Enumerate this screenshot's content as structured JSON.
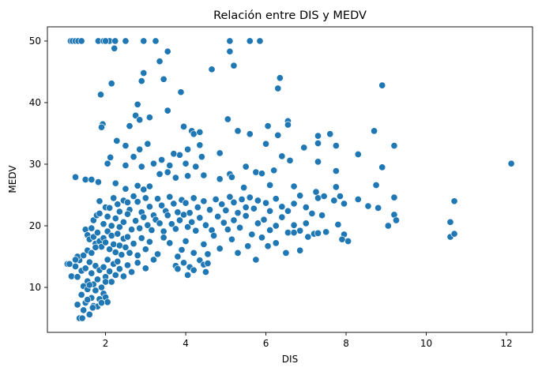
{
  "chart_data": {
    "type": "scatter",
    "title": "Relación entre DIS y MEDV",
    "xlabel": "DIS",
    "ylabel": "MEDV",
    "xlim": [
      0.55,
      12.65
    ],
    "ylim": [
      2.7,
      52.3
    ],
    "xticks": [
      2,
      4,
      6,
      8,
      10,
      12
    ],
    "yticks": [
      10,
      20,
      30,
      40,
      50
    ],
    "grid": false,
    "marker_color": "#1f77b4",
    "points": [
      [
        1.13,
        50
      ],
      [
        1.18,
        50
      ],
      [
        1.25,
        50
      ],
      [
        1.32,
        50
      ],
      [
        1.4,
        50
      ],
      [
        1.82,
        50
      ],
      [
        1.95,
        50
      ],
      [
        2.04,
        50
      ],
      [
        2.1,
        50
      ],
      [
        2.24,
        50
      ],
      [
        2.5,
        50
      ],
      [
        2.95,
        50
      ],
      [
        3.25,
        50
      ],
      [
        5.1,
        50
      ],
      [
        5.6,
        50
      ],
      [
        5.85,
        50
      ],
      [
        2.22,
        48.8
      ],
      [
        3.55,
        48.3
      ],
      [
        5.1,
        48.3
      ],
      [
        2.0,
        50
      ],
      [
        4.65,
        45.4
      ],
      [
        5.2,
        46
      ],
      [
        8.9,
        42.8
      ],
      [
        6.35,
        44
      ],
      [
        6.3,
        42.3
      ],
      [
        2.95,
        44.8
      ],
      [
        2.9,
        43.5
      ],
      [
        3.45,
        43.8
      ],
      [
        2.15,
        43.1
      ],
      [
        1.88,
        41.3
      ],
      [
        3.88,
        41.7
      ],
      [
        3.35,
        46.7
      ],
      [
        2.8,
        39.7
      ],
      [
        2.75,
        37.9
      ],
      [
        2.85,
        37.2
      ],
      [
        2.6,
        36.2
      ],
      [
        1.93,
        36.5
      ],
      [
        1.9,
        36
      ],
      [
        3.1,
        37.6
      ],
      [
        3.55,
        38.7
      ],
      [
        4.15,
        35.4
      ],
      [
        3.95,
        36.1
      ],
      [
        4.2,
        34.9
      ],
      [
        4.35,
        35.2
      ],
      [
        5.05,
        37.3
      ],
      [
        5.3,
        35.4
      ],
      [
        5.6,
        34.9
      ],
      [
        6.55,
        37
      ],
      [
        6.55,
        36.4
      ],
      [
        6.05,
        36.2
      ],
      [
        6.3,
        34.7
      ],
      [
        7.6,
        34.9
      ],
      [
        7.3,
        34.6
      ],
      [
        7.75,
        33.0
      ],
      [
        7.3,
        33.4
      ],
      [
        8.7,
        35.4
      ],
      [
        9.2,
        33.0
      ],
      [
        6.95,
        32.7
      ],
      [
        6.0,
        33.3
      ],
      [
        4.35,
        33.1
      ],
      [
        4.05,
        32.4
      ],
      [
        3.85,
        31.5
      ],
      [
        3.7,
        31.7
      ],
      [
        3.05,
        33.3
      ],
      [
        2.85,
        32.4
      ],
      [
        2.7,
        31.2
      ],
      [
        2.5,
        33.0
      ],
      [
        2.28,
        33.8
      ],
      [
        2.12,
        31.1
      ],
      [
        2.05,
        30.1
      ],
      [
        2.5,
        29.8
      ],
      [
        2.9,
        29.6
      ],
      [
        3.2,
        30.1
      ],
      [
        3.4,
        30.7
      ],
      [
        3.6,
        29.8
      ],
      [
        4.0,
        30.1
      ],
      [
        4.25,
        29.6
      ],
      [
        4.4,
        31.2
      ],
      [
        4.85,
        31.8
      ],
      [
        5.1,
        28.4
      ],
      [
        5.5,
        29.6
      ],
      [
        5.75,
        28.7
      ],
      [
        5.9,
        28.5
      ],
      [
        6.2,
        29.0
      ],
      [
        6.4,
        31.3
      ],
      [
        6.6,
        30.6
      ],
      [
        7.3,
        30.4
      ],
      [
        7.75,
        28.9
      ],
      [
        8.3,
        31.6
      ],
      [
        8.9,
        29.5
      ],
      [
        12.12,
        30.1
      ],
      [
        1.25,
        27.9
      ],
      [
        1.5,
        27.5
      ],
      [
        1.65,
        27.5
      ],
      [
        1.82,
        27.1
      ],
      [
        3.35,
        28.4
      ],
      [
        3.55,
        28.7
      ],
      [
        3.75,
        27.8
      ],
      [
        4.05,
        28.1
      ],
      [
        4.45,
        28.2
      ],
      [
        4.85,
        27.6
      ],
      [
        5.15,
        27.9
      ],
      [
        5.45,
        26.2
      ],
      [
        6.1,
        26.6
      ],
      [
        6.7,
        26.4
      ],
      [
        7.25,
        25.5
      ],
      [
        7.75,
        26.3
      ],
      [
        8.75,
        26.6
      ],
      [
        2.8,
        26.5
      ],
      [
        2.95,
        25.9
      ],
      [
        3.1,
        26.4
      ],
      [
        2.25,
        26.9
      ],
      [
        2.5,
        26.0
      ],
      [
        1.85,
        24.0
      ],
      [
        2.0,
        23.0
      ],
      [
        2.1,
        22.9
      ],
      [
        2.2,
        24.5
      ],
      [
        2.3,
        23.5
      ],
      [
        2.35,
        22.3
      ],
      [
        2.45,
        24.1
      ],
      [
        2.55,
        23.8
      ],
      [
        2.6,
        22.6
      ],
      [
        2.7,
        24.8
      ],
      [
        2.8,
        23.9
      ],
      [
        2.9,
        22.2
      ],
      [
        3.0,
        24.5
      ],
      [
        3.1,
        23.1
      ],
      [
        3.2,
        21.7
      ],
      [
        3.3,
        24.4
      ],
      [
        3.4,
        23.3
      ],
      [
        3.5,
        22.4
      ],
      [
        3.6,
        24.7
      ],
      [
        3.7,
        23.6
      ],
      [
        3.8,
        22.2
      ],
      [
        3.9,
        24.2
      ],
      [
        4.0,
        23.7
      ],
      [
        4.1,
        22.1
      ],
      [
        4.2,
        24.5
      ],
      [
        4.3,
        23.0
      ],
      [
        4.45,
        24.0
      ],
      [
        4.6,
        22.6
      ],
      [
        4.75,
        24.3
      ],
      [
        4.9,
        23.5
      ],
      [
        5.0,
        22.5
      ],
      [
        5.1,
        24.7
      ],
      [
        5.2,
        23.8
      ],
      [
        5.3,
        22.1
      ],
      [
        5.4,
        24.3
      ],
      [
        5.5,
        23.0
      ],
      [
        5.6,
        24.6
      ],
      [
        5.7,
        22.8
      ],
      [
        5.8,
        24.1
      ],
      [
        6.0,
        23.7
      ],
      [
        6.1,
        22.4
      ],
      [
        6.25,
        24.4
      ],
      [
        6.4,
        23.1
      ],
      [
        6.55,
        22.4
      ],
      [
        6.7,
        23.6
      ],
      [
        6.85,
        24.9
      ],
      [
        7.0,
        23.0
      ],
      [
        7.15,
        22.0
      ],
      [
        7.3,
        24.5
      ],
      [
        7.45,
        24.8
      ],
      [
        7.7,
        24.1
      ],
      [
        7.85,
        24.8
      ],
      [
        7.95,
        23.6
      ],
      [
        8.3,
        24.3
      ],
      [
        8.55,
        23.2
      ],
      [
        8.8,
        22.9
      ],
      [
        9.2,
        24.6
      ],
      [
        10.7,
        24.0
      ],
      [
        1.7,
        20.9
      ],
      [
        1.78,
        21.7
      ],
      [
        1.85,
        22.0
      ],
      [
        1.95,
        20.3
      ],
      [
        2.05,
        21.5
      ],
      [
        2.15,
        20.0
      ],
      [
        2.25,
        21.2
      ],
      [
        2.35,
        19.8
      ],
      [
        2.45,
        20.6
      ],
      [
        2.55,
        21.9
      ],
      [
        2.65,
        19.4
      ],
      [
        2.75,
        20.8
      ],
      [
        2.85,
        19.6
      ],
      [
        2.95,
        21.4
      ],
      [
        3.05,
        20.1
      ],
      [
        3.15,
        19.3
      ],
      [
        3.25,
        21.0
      ],
      [
        3.35,
        20.4
      ],
      [
        3.45,
        19.1
      ],
      [
        3.55,
        21.7
      ],
      [
        3.65,
        20.3
      ],
      [
        3.75,
        19.5
      ],
      [
        3.85,
        20.9
      ],
      [
        3.95,
        21.8
      ],
      [
        4.05,
        19.8
      ],
      [
        4.15,
        20.6
      ],
      [
        4.25,
        19.2
      ],
      [
        4.35,
        21.3
      ],
      [
        4.5,
        20.1
      ],
      [
        4.65,
        19.3
      ],
      [
        4.8,
        21.5
      ],
      [
        4.95,
        20.5
      ],
      [
        5.05,
        19.4
      ],
      [
        5.2,
        20.9
      ],
      [
        5.35,
        19.7
      ],
      [
        5.5,
        21.6
      ],
      [
        5.65,
        18.6
      ],
      [
        5.8,
        20.4
      ],
      [
        5.95,
        21.0
      ],
      [
        6.1,
        19.3
      ],
      [
        6.25,
        20.0
      ],
      [
        6.4,
        21.4
      ],
      [
        6.55,
        18.9
      ],
      [
        6.7,
        20.1
      ],
      [
        6.85,
        19.2
      ],
      [
        7.0,
        20.4
      ],
      [
        7.2,
        18.7
      ],
      [
        7.4,
        21.7
      ],
      [
        7.8,
        20.2
      ],
      [
        7.95,
        18.6
      ],
      [
        8.05,
        17.5
      ],
      [
        7.9,
        17.8
      ],
      [
        9.05,
        20.0
      ],
      [
        9.2,
        21.8
      ],
      [
        9.25,
        20.9
      ],
      [
        10.6,
        20.6
      ],
      [
        10.6,
        18.2
      ],
      [
        10.7,
        18.7
      ],
      [
        1.5,
        19.4
      ],
      [
        1.55,
        18.5
      ],
      [
        1.6,
        17.8
      ],
      [
        1.65,
        19.6
      ],
      [
        1.7,
        18.2
      ],
      [
        1.75,
        17.1
      ],
      [
        1.8,
        18.9
      ],
      [
        1.85,
        17.5
      ],
      [
        1.9,
        16.6
      ],
      [
        1.95,
        18.0
      ],
      [
        2.0,
        17.3
      ],
      [
        2.05,
        19.1
      ],
      [
        2.1,
        16.2
      ],
      [
        2.15,
        18.4
      ],
      [
        2.2,
        17.0
      ],
      [
        2.25,
        15.7
      ],
      [
        2.3,
        18.7
      ],
      [
        2.35,
        16.8
      ],
      [
        2.4,
        15.3
      ],
      [
        2.45,
        17.9
      ],
      [
        2.5,
        16.5
      ],
      [
        2.55,
        18.2
      ],
      [
        2.6,
        15.6
      ],
      [
        2.7,
        17.1
      ],
      [
        2.8,
        15.2
      ],
      [
        2.9,
        18.0
      ],
      [
        3.0,
        16.2
      ],
      [
        3.1,
        17.4
      ],
      [
        3.3,
        15.4
      ],
      [
        3.45,
        18.1
      ],
      [
        3.6,
        17.2
      ],
      [
        3.8,
        15.0
      ],
      [
        3.9,
        16.1
      ],
      [
        4.0,
        17.5
      ],
      [
        4.1,
        13.3
      ],
      [
        4.2,
        15.6
      ],
      [
        4.35,
        14.4
      ],
      [
        4.45,
        17.0
      ],
      [
        4.55,
        15.4
      ],
      [
        4.7,
        18.4
      ],
      [
        4.85,
        16.3
      ],
      [
        5.15,
        17.8
      ],
      [
        5.3,
        15.6
      ],
      [
        5.55,
        16.7
      ],
      [
        5.75,
        14.5
      ],
      [
        5.9,
        18.1
      ],
      [
        6.05,
        16.7
      ],
      [
        6.25,
        17.2
      ],
      [
        6.5,
        15.6
      ],
      [
        6.7,
        18.9
      ],
      [
        6.85,
        16.0
      ],
      [
        7.05,
        18.2
      ],
      [
        7.3,
        18.8
      ],
      [
        7.5,
        19.0
      ],
      [
        1.05,
        13.8
      ],
      [
        1.15,
        11.8
      ],
      [
        1.25,
        13.4
      ],
      [
        1.3,
        11.7
      ],
      [
        1.35,
        14.4
      ],
      [
        1.4,
        12.7
      ],
      [
        1.45,
        10.2
      ],
      [
        1.5,
        13.1
      ],
      [
        1.55,
        11.0
      ],
      [
        1.6,
        14.1
      ],
      [
        1.65,
        12.3
      ],
      [
        1.7,
        10.5
      ],
      [
        1.75,
        13.5
      ],
      [
        1.8,
        11.3
      ],
      [
        1.85,
        12.8
      ],
      [
        1.9,
        10.0
      ],
      [
        1.95,
        13.3
      ],
      [
        2.0,
        11.7
      ],
      [
        2.05,
        14.5
      ],
      [
        2.1,
        12.6
      ],
      [
        2.15,
        10.9
      ],
      [
        2.2,
        13.8
      ],
      [
        2.25,
        12.0
      ],
      [
        2.3,
        14.2
      ],
      [
        2.35,
        13.0
      ],
      [
        2.45,
        11.8
      ],
      [
        2.55,
        13.6
      ],
      [
        2.65,
        12.5
      ],
      [
        2.8,
        14.0
      ],
      [
        3.0,
        13.1
      ],
      [
        3.2,
        14.5
      ],
      [
        3.75,
        13.5
      ],
      [
        3.8,
        13.0
      ],
      [
        3.95,
        14.0
      ],
      [
        4.05,
        12.0
      ],
      [
        4.2,
        12.8
      ],
      [
        4.45,
        13.7
      ],
      [
        4.5,
        12.5
      ],
      [
        4.55,
        13.9
      ],
      [
        1.3,
        7.2
      ],
      [
        1.35,
        5.0
      ],
      [
        1.4,
        8.8
      ],
      [
        1.45,
        6.3
      ],
      [
        1.5,
        7.5
      ],
      [
        1.55,
        9.7
      ],
      [
        1.6,
        5.6
      ],
      [
        1.65,
        8.3
      ],
      [
        1.7,
        7.0
      ],
      [
        1.75,
        9.5
      ],
      [
        1.8,
        6.9
      ],
      [
        1.85,
        8.1
      ],
      [
        1.9,
        7.4
      ],
      [
        1.95,
        9.0
      ],
      [
        2.0,
        8.4
      ],
      [
        2.05,
        7.6
      ],
      [
        1.42,
        5.0
      ],
      [
        1.55,
        8.0
      ],
      [
        1.6,
        10.4
      ],
      [
        1.68,
        6.7
      ],
      [
        1.9,
        7.5
      ],
      [
        2.0,
        10.9
      ],
      [
        1.3,
        15.0
      ],
      [
        1.25,
        14.5
      ],
      [
        1.1,
        13.8
      ],
      [
        1.45,
        15.2
      ],
      [
        1.55,
        16.0
      ],
      [
        1.65,
        15.6
      ],
      [
        1.75,
        16.5
      ]
    ]
  }
}
